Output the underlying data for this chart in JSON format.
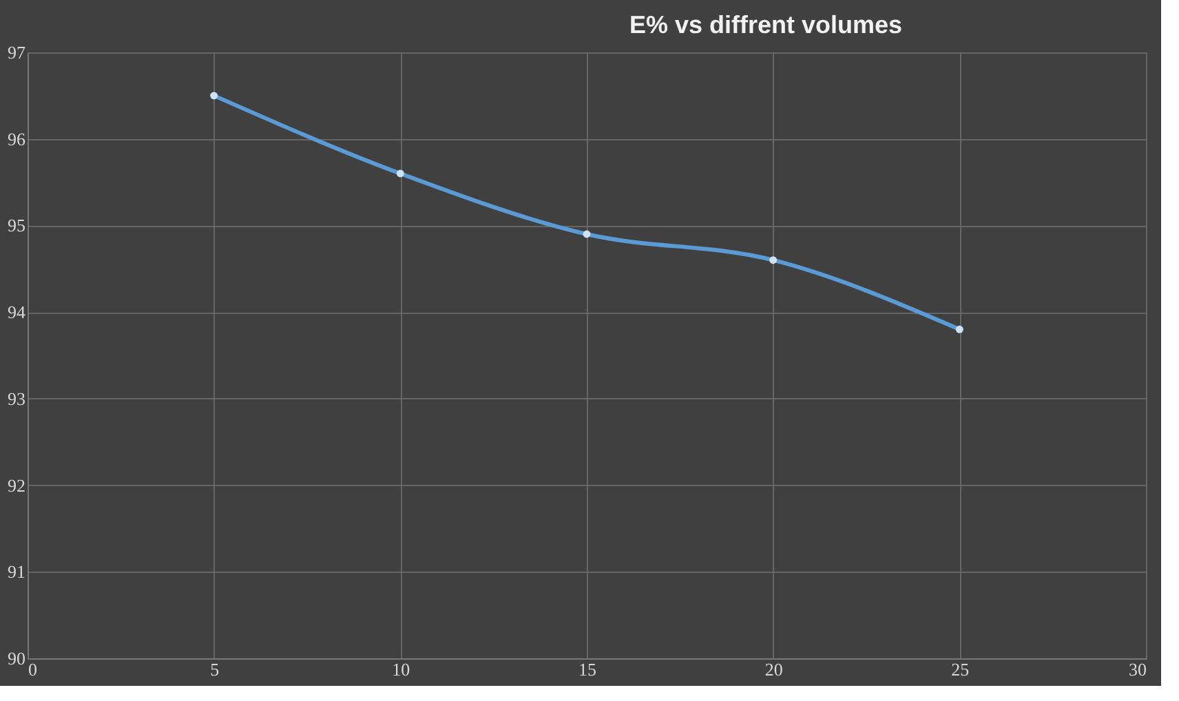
{
  "chart_data": {
    "type": "line",
    "title": "E% vs diffrent volumes",
    "x": [
      5,
      10,
      15,
      20,
      25
    ],
    "series": [
      {
        "color": "#5b9bd5",
        "values": [
          96.5,
          95.6,
          94.9,
          94.6,
          93.8
        ]
      }
    ],
    "xlim": [
      0,
      30
    ],
    "xticks": [
      0,
      5,
      10,
      15,
      20,
      25,
      30
    ],
    "ylim": [
      90,
      97
    ],
    "yticks": [
      90,
      91,
      92,
      93,
      94,
      95,
      96,
      97
    ],
    "grid": true,
    "marker": "circle",
    "line_style": "solid"
  }
}
